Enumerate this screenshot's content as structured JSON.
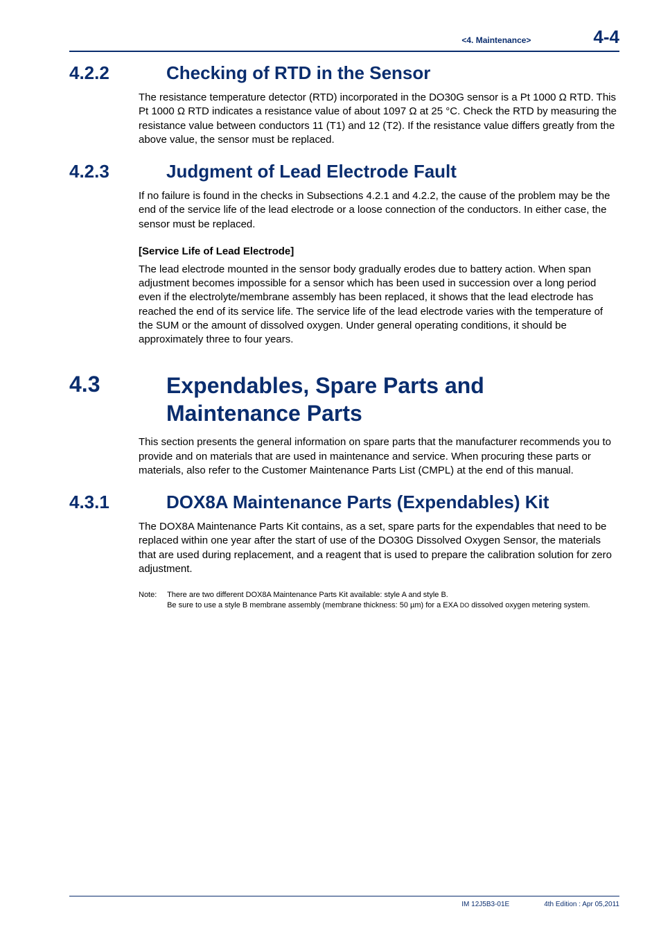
{
  "header": {
    "section_label": "<4.  Maintenance>",
    "page_number": "4-4"
  },
  "sections": {
    "s422": {
      "number": "4.2.2",
      "title": "Checking of RTD in the Sensor",
      "body": "The resistance temperature detector (RTD) incorporated in the DO30G sensor is a Pt 1000 Ω RTD. This Pt 1000 Ω RTD indicates a resistance value of about 1097 Ω at 25 °C. Check the RTD by measuring the resistance value between conductors 11 (T1) and 12 (T2). If the resistance value differs greatly from the above value, the sensor must be replaced."
    },
    "s423": {
      "number": "4.2.3",
      "title": "Judgment of Lead Electrode Fault",
      "body1": "If no failure is found in the checks in Subsections 4.2.1 and 4.2.2, the cause of the problem may be the end of the service life of the lead electrode or a loose connection of the conductors. In either case, the sensor must be replaced.",
      "subhead": "[Service Life of Lead Electrode]",
      "body2": "The lead electrode mounted in the sensor body gradually erodes due to battery action. When span adjustment becomes impossible for a sensor which has been used in succession over a long period even if the electrolyte/membrane assembly has been replaced, it shows that the lead electrode has reached the end of its service life. The service life of the lead electrode varies with the temperature of the SUM or the amount of dissolved oxygen. Under general operating conditions, it should be approximately three to four years."
    },
    "s43": {
      "number": "4.3",
      "title_line1": "Expendables, Spare Parts and",
      "title_line2": "Maintenance Parts",
      "body": "This section presents the general information on spare parts that the manufacturer recommends you to provide and on materials that are used in maintenance and service. When procuring these parts or materials, also refer to the Customer Maintenance Parts List (CMPL) at the end of this manual."
    },
    "s431": {
      "number": "4.3.1",
      "title": "DOX8A Maintenance Parts (Expendables) Kit",
      "body": "The DOX8A Maintenance Parts Kit contains, as a set, spare parts for the expendables that need to be replaced within one year after the start of use of the DO30G Dissolved Oxygen Sensor, the materials that are used during replacement, and a reagent that is used to prepare the calibration solution for zero adjustment.",
      "note_label": "Note:",
      "note_line1": "There are two different DOX8A Maintenance Parts Kit available: style A and style B.",
      "note_line2a": "Be sure to use a style B membrane assembly (membrane thickness: 50 µm) for a EXA ",
      "note_line2_small": "DO",
      "note_line2b": " dissolved oxygen metering system."
    }
  },
  "footer": {
    "doc_id": "IM 12J5B3-01E",
    "edition": "4th Edition : Apr 05,2011"
  }
}
